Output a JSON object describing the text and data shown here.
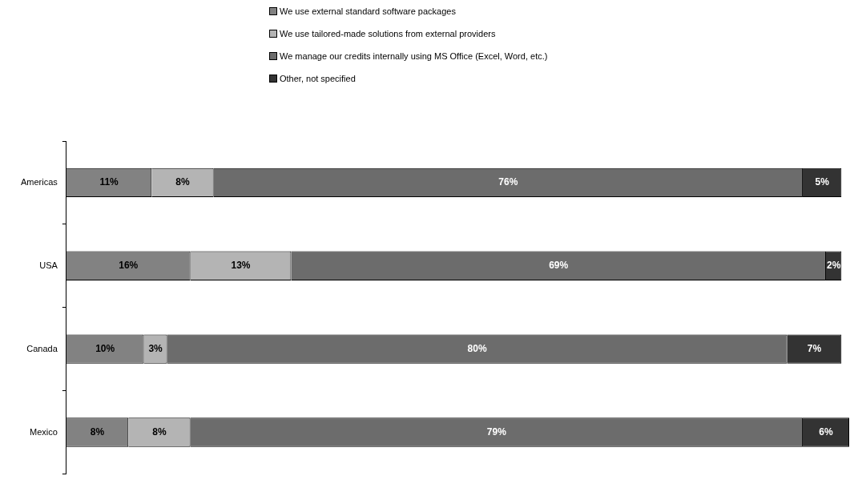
{
  "chart_data": {
    "type": "bar",
    "orientation": "horizontal",
    "stacked": true,
    "legend": "top",
    "categories": [
      "Americas",
      "USA",
      "Canada",
      "Mexico"
    ],
    "series": [
      {
        "name": "We use external standard software packages",
        "color": "#828282",
        "values": [
          11,
          16,
          10,
          8
        ],
        "value_labels": [
          "11%",
          "16%",
          "10%",
          "8%"
        ]
      },
      {
        "name": "We use tailored-made solutions from external providers",
        "color": "#b4b4b4",
        "values": [
          8,
          13,
          3,
          8
        ],
        "value_labels": [
          "8%",
          "13%",
          "3%",
          "8%"
        ]
      },
      {
        "name": "We manage our credits internally using MS Office (Excel, Word, etc.)",
        "color": "#6c6c6c",
        "values": [
          76,
          69,
          80,
          79
        ],
        "value_labels": [
          "76%",
          "69%",
          "80%",
          "79%"
        ]
      },
      {
        "name": "Other, not specified",
        "color": "#333333",
        "values": [
          5,
          2,
          7,
          6
        ],
        "value_labels": [
          "5%",
          "2%",
          "7%",
          "6%"
        ]
      }
    ]
  }
}
